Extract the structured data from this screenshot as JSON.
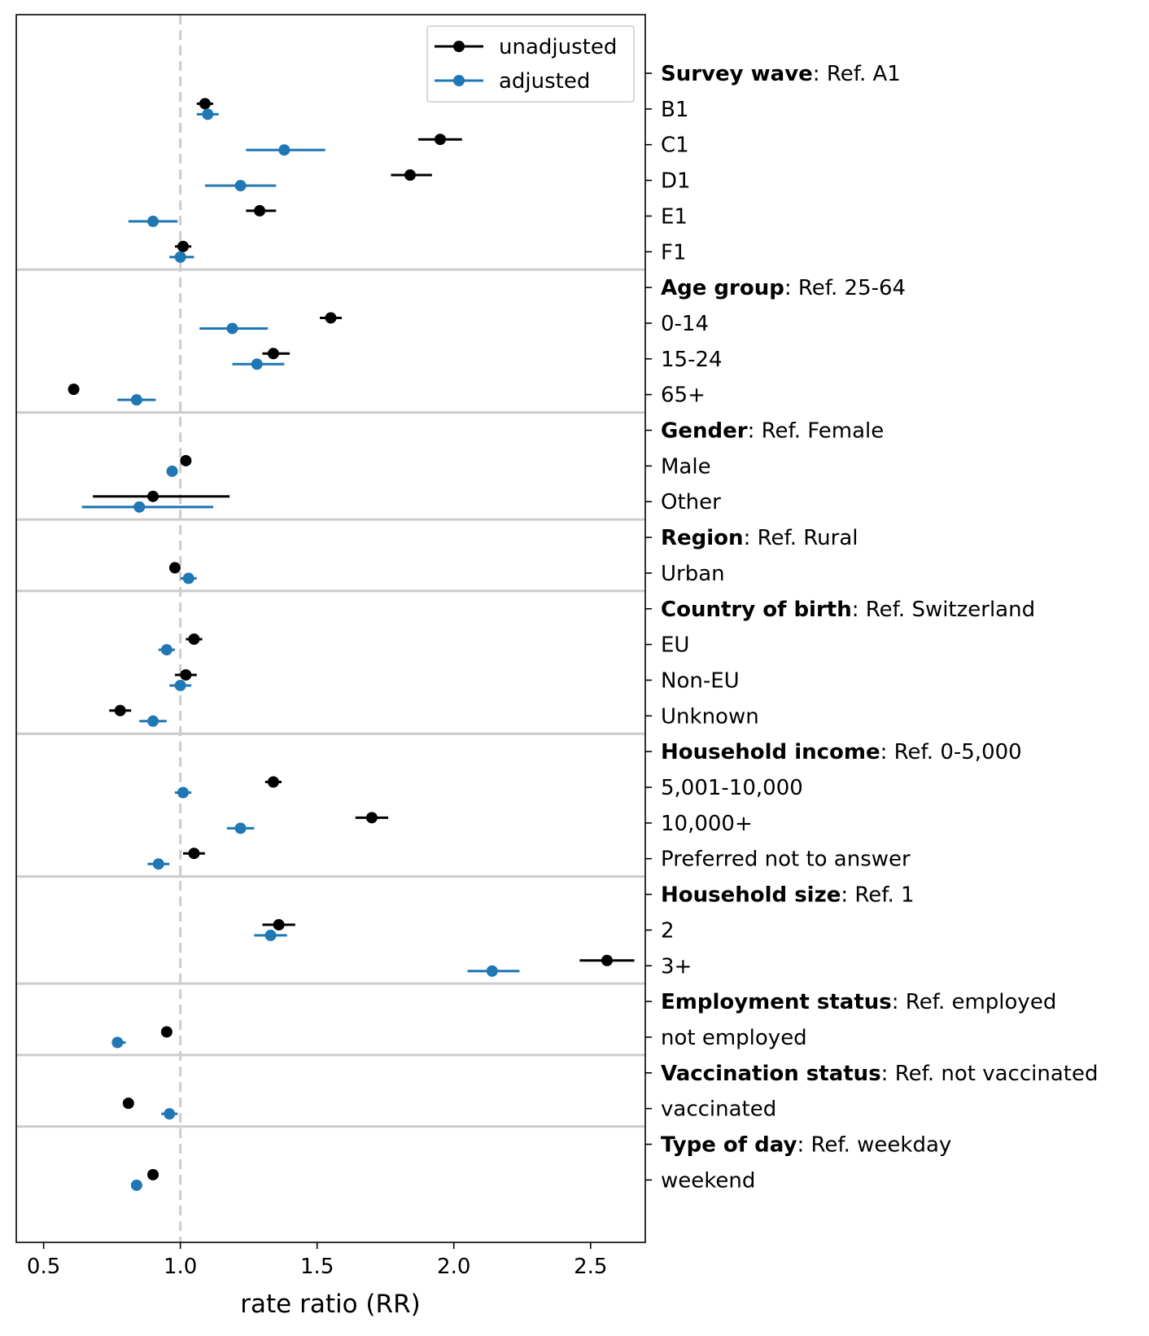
{
  "chart_data": {
    "type": "scatter",
    "xlabel": "rate ratio (RR)",
    "xlim": [
      0.4,
      2.7
    ],
    "xticks": [
      "0.5",
      "1.0",
      "1.5",
      "2.0",
      "2.5"
    ],
    "xtick_values": [
      0.5,
      1.0,
      1.5,
      2.0,
      2.5
    ],
    "reference_line": 1.0,
    "legend": {
      "position": "top-right",
      "entries": [
        "unadjusted",
        "adjusted"
      ]
    },
    "colors": {
      "unadjusted": "#000000",
      "adjusted": "#1f77b4",
      "reference_line": "#cccccc",
      "separator": "#cccccc"
    },
    "groups": [
      {
        "name": "Survey wave",
        "ref": ": Ref. A1",
        "rows": [
          {
            "label": "B1",
            "unadjusted": {
              "rr": 1.09,
              "lo": 1.06,
              "hi": 1.12
            },
            "adjusted": {
              "rr": 1.1,
              "lo": 1.06,
              "hi": 1.14
            }
          },
          {
            "label": "C1",
            "unadjusted": {
              "rr": 1.95,
              "lo": 1.87,
              "hi": 2.03
            },
            "adjusted": {
              "rr": 1.38,
              "lo": 1.24,
              "hi": 1.53
            }
          },
          {
            "label": "D1",
            "unadjusted": {
              "rr": 1.84,
              "lo": 1.77,
              "hi": 1.92
            },
            "adjusted": {
              "rr": 1.22,
              "lo": 1.09,
              "hi": 1.35
            }
          },
          {
            "label": "E1",
            "unadjusted": {
              "rr": 1.29,
              "lo": 1.24,
              "hi": 1.35
            },
            "adjusted": {
              "rr": 0.9,
              "lo": 0.81,
              "hi": 0.99
            }
          },
          {
            "label": "F1",
            "unadjusted": {
              "rr": 1.01,
              "lo": 0.98,
              "hi": 1.04
            },
            "adjusted": {
              "rr": 1.0,
              "lo": 0.96,
              "hi": 1.05
            }
          }
        ]
      },
      {
        "name": "Age group",
        "ref": ": Ref. 25-64",
        "rows": [
          {
            "label": "0-14",
            "unadjusted": {
              "rr": 1.55,
              "lo": 1.51,
              "hi": 1.59
            },
            "adjusted": {
              "rr": 1.19,
              "lo": 1.07,
              "hi": 1.32
            }
          },
          {
            "label": "15-24",
            "unadjusted": {
              "rr": 1.34,
              "lo": 1.3,
              "hi": 1.4
            },
            "adjusted": {
              "rr": 1.28,
              "lo": 1.19,
              "hi": 1.38
            }
          },
          {
            "label": "65+",
            "unadjusted": {
              "rr": 0.61,
              "lo": 0.6,
              "hi": 0.62
            },
            "adjusted": {
              "rr": 0.84,
              "lo": 0.77,
              "hi": 0.91
            }
          }
        ]
      },
      {
        "name": "Gender",
        "ref": ": Ref. Female",
        "rows": [
          {
            "label": "Male",
            "unadjusted": {
              "rr": 1.02,
              "lo": 1.01,
              "hi": 1.03
            },
            "adjusted": {
              "rr": 0.97,
              "lo": 0.95,
              "hi": 0.99
            }
          },
          {
            "label": "Other",
            "unadjusted": {
              "rr": 0.9,
              "lo": 0.68,
              "hi": 1.18
            },
            "adjusted": {
              "rr": 0.85,
              "lo": 0.64,
              "hi": 1.12
            }
          }
        ]
      },
      {
        "name": "Region",
        "ref": ": Ref. Rural",
        "rows": [
          {
            "label": "Urban",
            "unadjusted": {
              "rr": 0.98,
              "lo": 0.96,
              "hi": 1.0
            },
            "adjusted": {
              "rr": 1.03,
              "lo": 1.0,
              "hi": 1.06
            }
          }
        ]
      },
      {
        "name": "Country of birth",
        "ref": ": Ref. Switzerland",
        "rows": [
          {
            "label": "EU",
            "unadjusted": {
              "rr": 1.05,
              "lo": 1.02,
              "hi": 1.08
            },
            "adjusted": {
              "rr": 0.95,
              "lo": 0.92,
              "hi": 0.98
            }
          },
          {
            "label": "Non-EU",
            "unadjusted": {
              "rr": 1.02,
              "lo": 0.98,
              "hi": 1.06
            },
            "adjusted": {
              "rr": 1.0,
              "lo": 0.96,
              "hi": 1.04
            }
          },
          {
            "label": "Unknown",
            "unadjusted": {
              "rr": 0.78,
              "lo": 0.74,
              "hi": 0.82
            },
            "adjusted": {
              "rr": 0.9,
              "lo": 0.85,
              "hi": 0.95
            }
          }
        ]
      },
      {
        "name": "Household income",
        "ref": ": Ref. 0-5,000",
        "rows": [
          {
            "label": "5,001-10,000",
            "unadjusted": {
              "rr": 1.34,
              "lo": 1.31,
              "hi": 1.37
            },
            "adjusted": {
              "rr": 1.01,
              "lo": 0.98,
              "hi": 1.04
            }
          },
          {
            "label": "10,000+",
            "unadjusted": {
              "rr": 1.7,
              "lo": 1.64,
              "hi": 1.76
            },
            "adjusted": {
              "rr": 1.22,
              "lo": 1.17,
              "hi": 1.27
            }
          },
          {
            "label": "Preferred not to answer",
            "unadjusted": {
              "rr": 1.05,
              "lo": 1.01,
              "hi": 1.09
            },
            "adjusted": {
              "rr": 0.92,
              "lo": 0.88,
              "hi": 0.96
            }
          }
        ]
      },
      {
        "name": "Household size",
        "ref": ": Ref. 1",
        "rows": [
          {
            "label": "2",
            "unadjusted": {
              "rr": 1.36,
              "lo": 1.3,
              "hi": 1.42
            },
            "adjusted": {
              "rr": 1.33,
              "lo": 1.27,
              "hi": 1.39
            }
          },
          {
            "label": "3+",
            "unadjusted": {
              "rr": 2.56,
              "lo": 2.46,
              "hi": 2.66
            },
            "adjusted": {
              "rr": 2.14,
              "lo": 2.05,
              "hi": 2.24
            }
          }
        ]
      },
      {
        "name": "Employment status",
        "ref": ": Ref. employed",
        "rows": [
          {
            "label": "not employed",
            "unadjusted": {
              "rr": 0.95,
              "lo": 0.94,
              "hi": 0.97
            },
            "adjusted": {
              "rr": 0.77,
              "lo": 0.75,
              "hi": 0.8
            }
          }
        ]
      },
      {
        "name": "Vaccination status",
        "ref": ": Ref. not vaccinated",
        "rows": [
          {
            "label": "vaccinated",
            "unadjusted": {
              "rr": 0.81,
              "lo": 0.8,
              "hi": 0.82
            },
            "adjusted": {
              "rr": 0.96,
              "lo": 0.93,
              "hi": 0.99
            }
          }
        ]
      },
      {
        "name": "Type of day",
        "ref": ": Ref. weekday",
        "rows": [
          {
            "label": "weekend",
            "unadjusted": {
              "rr": 0.9,
              "lo": 0.89,
              "hi": 0.92
            },
            "adjusted": {
              "rr": 0.84,
              "lo": 0.83,
              "hi": 0.86
            }
          }
        ]
      }
    ]
  }
}
